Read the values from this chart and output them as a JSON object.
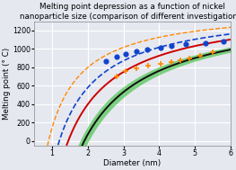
{
  "title": "Melting point depression as a function of nickel\nnanoparticle size (comparison of different investigations)",
  "xlabel": "Diameter (nm)",
  "ylabel": "Melting point (° C)",
  "xlim": [
    0.5,
    6.0
  ],
  "ylim": [
    -50,
    1300
  ],
  "xticks": [
    1,
    2,
    3,
    4,
    5,
    6
  ],
  "yticks": [
    0,
    200,
    400,
    600,
    800,
    1000,
    1200
  ],
  "bg_color": "#e6e8f0",
  "grid_color": "white",
  "title_fontsize": 6.3,
  "label_fontsize": 6.3,
  "tick_fontsize": 5.8,
  "red_line": {
    "color": "#cc0000",
    "lw": 1.4,
    "d_start": 1.0,
    "d_end": 6.0,
    "Tm_bulk": 1453,
    "C": 1.45
  },
  "black_line": {
    "color": "#111111",
    "lw": 1.4,
    "d_start": 1.6,
    "d_end": 6.0,
    "Tm_bulk": 1453,
    "C": 1.9
  },
  "green_band": {
    "color": "#22bb22",
    "alpha": 0.55,
    "d_start": 1.6,
    "d_end": 6.0,
    "Tm_bulk": 1453,
    "C_low": 1.78,
    "C_high": 2.02
  },
  "blue_dashed_line": {
    "color": "#1144cc",
    "lw": 1.2,
    "linestyle": "--",
    "d_start": 0.9,
    "d_end": 6.0,
    "Tm_bulk": 1453,
    "C": 1.2
  },
  "orange_dashed_line": {
    "color": "#ff8800",
    "lw": 1.0,
    "linestyle": "--",
    "d_start": 0.6,
    "d_end": 6.0,
    "Tm_bulk": 1453,
    "C": 0.9
  },
  "blue_dots": {
    "color": "#1144cc",
    "marker": "o",
    "size": 12,
    "x": [
      2.5,
      2.8,
      3.05,
      3.35,
      3.65,
      4.05,
      4.35,
      4.75,
      5.3,
      5.8
    ],
    "y": [
      870,
      920,
      950,
      970,
      990,
      1010,
      1030,
      1050,
      1065,
      1080
    ]
  },
  "orange_crosses": {
    "color": "#ff8800",
    "marker": "+",
    "size": 22,
    "lw": 1.2,
    "x": [
      2.8,
      3.05,
      3.35,
      3.7,
      4.05,
      4.35,
      4.6,
      4.85,
      5.15,
      5.5
    ],
    "y": [
      700,
      760,
      790,
      820,
      840,
      860,
      875,
      900,
      930,
      960
    ]
  }
}
